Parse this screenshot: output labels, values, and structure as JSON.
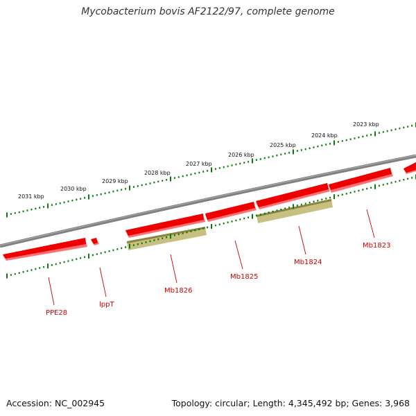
{
  "title": "Mycobacterium bovis AF2122/97, complete genome",
  "footer": {
    "accession_label": "Accession:",
    "accession": "NC_002945",
    "topology_text": "Topology: circular; Length: 4,345,492 bp; Genes: 3,968"
  },
  "colors": {
    "backbone": "#808080",
    "gene": "#ee0000",
    "gene_light": "#ff7070",
    "feature": "#c8c080",
    "feature_dark": "#8a8440",
    "ticks": "#0b7a0b",
    "label": "#cc0000"
  },
  "scale_labels": [
    "2023 kbp",
    "2024 kbp",
    "2025 kbp",
    "2026 kbp",
    "2027 kbp",
    "2028 kbp",
    "2029 kbp",
    "2030 kbp",
    "2031 kbp"
  ],
  "gene_labels": [
    "Mb1823",
    "Mb1824",
    "Mb1825",
    "Mb1826",
    "lppT",
    "PPE28"
  ]
}
